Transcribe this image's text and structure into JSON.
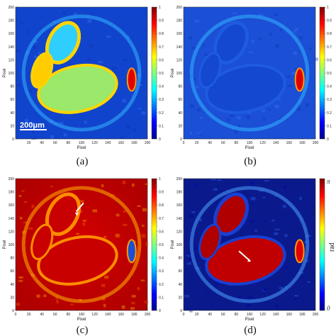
{
  "chart_data": [
    {
      "type": "heatmap",
      "panel_label": "(a)",
      "xlabel": "Pixel",
      "ylabel": "Pixel",
      "xticks": [
        "20",
        "40",
        "60",
        "80",
        "100",
        "120",
        "140",
        "160",
        "180",
        "200"
      ],
      "yticks": [
        "0",
        "20",
        "40",
        "60",
        "80",
        "100",
        "120",
        "140",
        "160",
        "180",
        "200"
      ],
      "xlim": [
        0,
        200
      ],
      "ylim": [
        0,
        200
      ],
      "colormap": "jet",
      "colorbar_ticks": [
        "0",
        "0.1",
        "0.2",
        "0.3",
        "0.4",
        "0.5",
        "0.6",
        "0.7",
        "0.8",
        "0.9",
        "1"
      ],
      "colorbar_range": [
        0,
        1
      ],
      "scale_bar_label": "200μm"
    },
    {
      "type": "heatmap",
      "panel_label": "(b)",
      "xlabel": "Pixel",
      "ylabel": "Pixel",
      "xticks": [
        "0",
        "20",
        "40",
        "60",
        "80",
        "100",
        "120",
        "140",
        "160",
        "180",
        "200"
      ],
      "yticks": [
        "0",
        "20",
        "40",
        "60",
        "80",
        "100",
        "120",
        "140",
        "160",
        "180",
        "200"
      ],
      "xlim": [
        0,
        200
      ],
      "ylim": [
        0,
        200
      ],
      "colormap": "jet",
      "colorbar_ticks": [
        "0",
        "0.1",
        "0.2",
        "0.3",
        "0.4",
        "0.5",
        "0.6",
        "0.7",
        "0.8",
        "0.9",
        "1"
      ],
      "colorbar_range": [
        0,
        1
      ]
    },
    {
      "type": "heatmap",
      "panel_label": "(c)",
      "xlabel": "Pixel",
      "ylabel": "Pixel",
      "xticks": [
        "0",
        "20",
        "40",
        "60",
        "80",
        "100",
        "120",
        "140",
        "160",
        "180",
        "200"
      ],
      "yticks": [
        "0",
        "20",
        "40",
        "60",
        "80",
        "100",
        "120",
        "140",
        "160",
        "180",
        "200"
      ],
      "xlim": [
        0,
        200
      ],
      "ylim": [
        0,
        200
      ],
      "colormap": "jet",
      "colorbar_ticks": [
        "0",
        "0.1",
        "0.2",
        "0.3",
        "0.4",
        "0.5",
        "0.6",
        "0.7",
        "0.8",
        "0.9",
        "1"
      ],
      "colorbar_range": [
        0,
        1
      ]
    },
    {
      "type": "heatmap",
      "panel_label": "(d)",
      "xlabel": "Pixel",
      "ylabel": "Pixel",
      "xticks": [
        "0",
        "20",
        "40",
        "60",
        "80",
        "100",
        "120",
        "140",
        "160",
        "180",
        "200"
      ],
      "yticks": [
        "0",
        "20",
        "40",
        "60",
        "80",
        "100",
        "120",
        "140",
        "160",
        "180",
        "200"
      ],
      "xlim": [
        0,
        200
      ],
      "ylim": [
        0,
        200
      ],
      "colormap": "jet",
      "colorbar_ticks": [
        "0",
        "π"
      ],
      "colorbar_unit": "rad",
      "colorbar_range": [
        0,
        3.1416
      ]
    }
  ],
  "colors": {
    "jet_low": "#00008f",
    "jet_mid": "#7fff7f",
    "jet_high": "#800000"
  }
}
